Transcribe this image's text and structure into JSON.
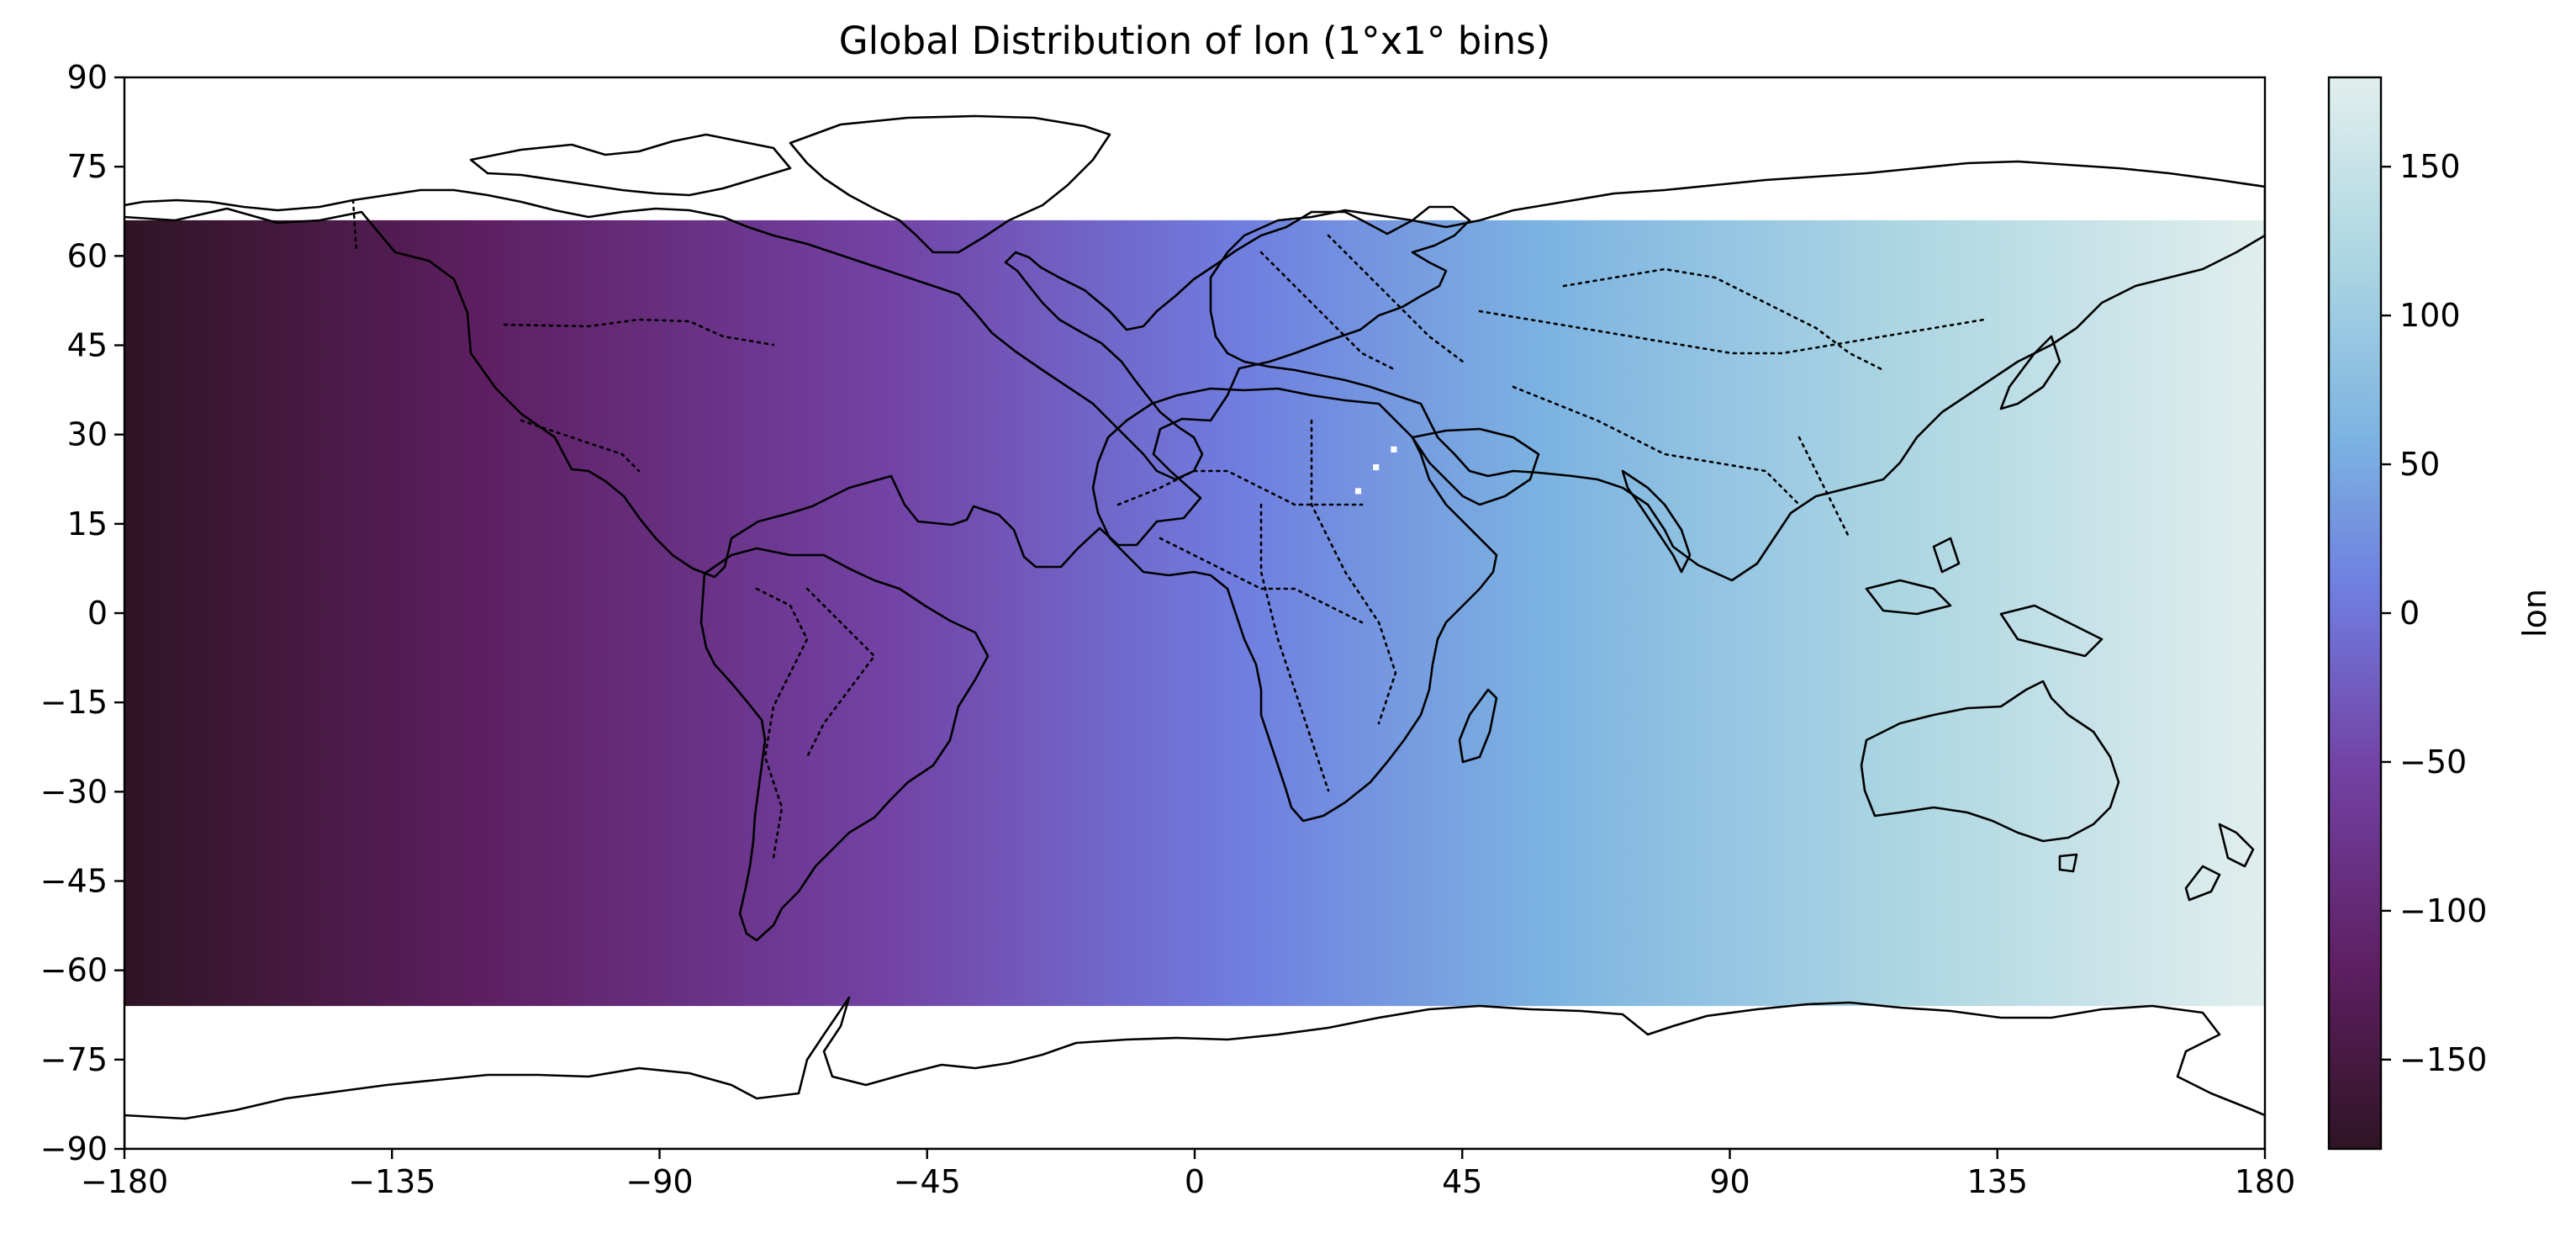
{
  "chart_data": {
    "type": "heatmap",
    "title": "Global Distribution of lon (1°x1° bins)",
    "xlabel": "",
    "ylabel": "",
    "x_ticks": [
      "−180",
      "−135",
      "−90",
      "−45",
      "0",
      "45",
      "90",
      "135",
      "180"
    ],
    "y_ticks": [
      "90",
      "75",
      "60",
      "45",
      "30",
      "15",
      "0",
      "−15",
      "−30",
      "−45",
      "−60",
      "−75",
      "−90"
    ],
    "xlim": [
      -180,
      180
    ],
    "ylim": [
      -90,
      90
    ],
    "data_extent": {
      "lon": [
        -180,
        180
      ],
      "lat": [
        -66,
        66
      ]
    },
    "bin_size_deg": 1,
    "value_formula": "cell value equals its longitude",
    "missing_cells": [
      {
        "lon": 33,
        "lat": 27
      },
      {
        "lon": 30,
        "lat": 24
      },
      {
        "lon": 27,
        "lat": 20
      }
    ],
    "colormap": "twilight_shifted (lower half)",
    "colorbar": {
      "label": "lon",
      "range": [
        -180,
        180
      ],
      "ticks": [
        "−150",
        "−100",
        "−50",
        "0",
        "50",
        "100",
        "150"
      ]
    },
    "overlays": [
      "coastlines",
      "country borders (dotted)"
    ],
    "grid": false,
    "colors": {
      "min": "#2f1424",
      "low": "#5e1f62",
      "mid_low": "#7343a6",
      "mid": "#6f7ddf",
      "mid_high": "#7bb2e1",
      "high": "#a9d4e2",
      "max": "#e1efed"
    }
  }
}
